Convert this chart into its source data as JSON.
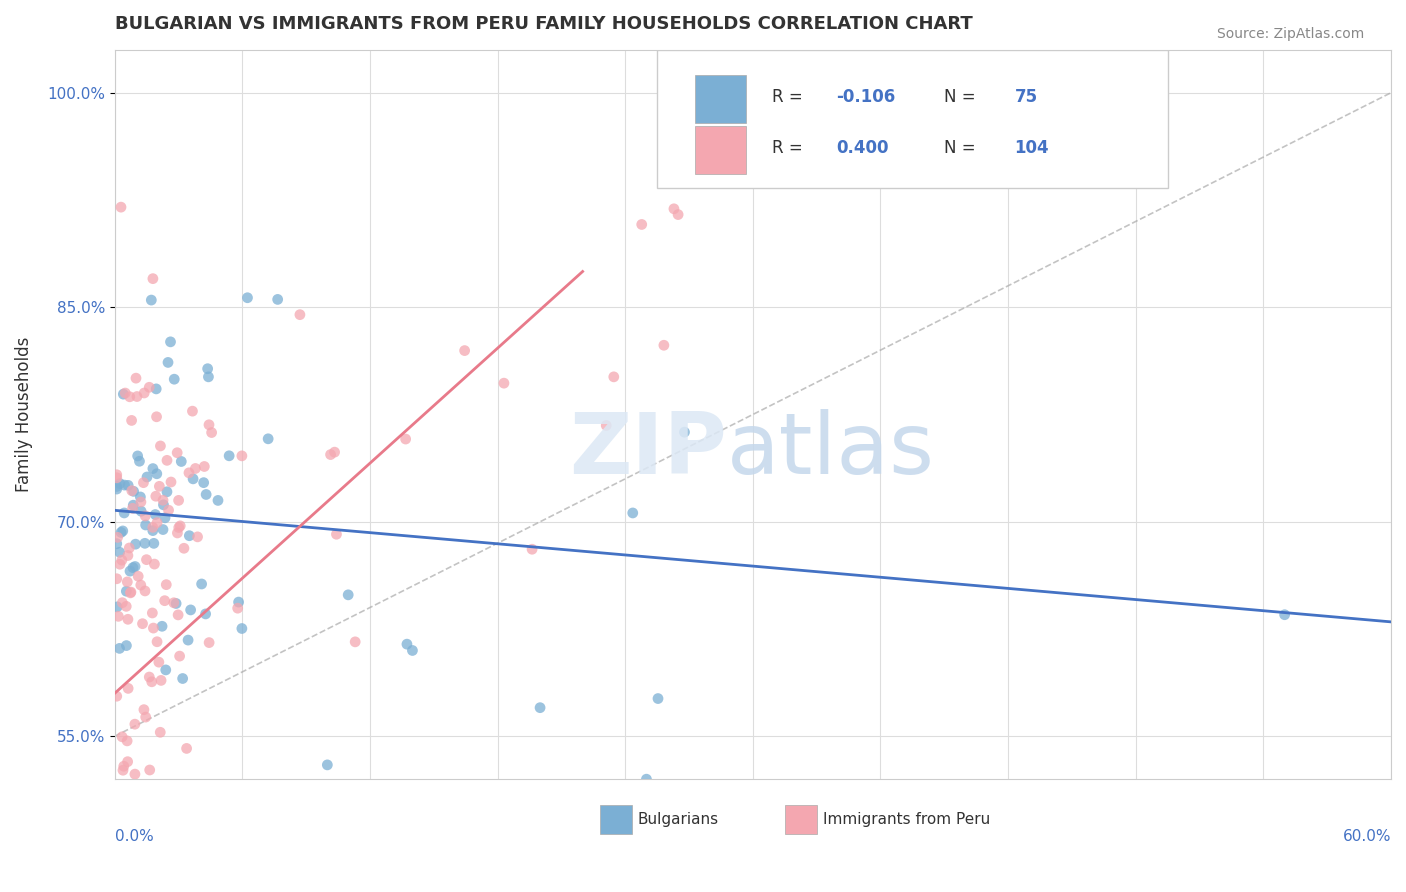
{
  "title": "BULGARIAN VS IMMIGRANTS FROM PERU FAMILY HOUSEHOLDS CORRELATION CHART",
  "source": "Source: ZipAtlas.com",
  "ylabel": "Family Households",
  "xlim": [
    0.0,
    60.0
  ],
  "ylim": [
    52.0,
    103.0
  ],
  "yticks": [
    55.0,
    70.0,
    85.0,
    100.0
  ],
  "ytick_labels": [
    "55.0%",
    "70.0%",
    "85.0%",
    "100.0%"
  ],
  "color_blue": "#7bafd4",
  "color_pink": "#f4a7b0",
  "color_blue_dark": "#4472c4",
  "color_pink_dark": "#e87a8a",
  "blue_trend_x": [
    0.0,
    60.0
  ],
  "blue_trend_y": [
    70.8,
    63.0
  ],
  "pink_trend_x": [
    0.0,
    22.0
  ],
  "pink_trend_y": [
    58.0,
    87.5
  ],
  "diag_line_x": [
    0.0,
    60.0
  ],
  "diag_line_y": [
    55.0,
    100.0
  ],
  "background_color": "#ffffff",
  "grid_color": "#dddddd"
}
